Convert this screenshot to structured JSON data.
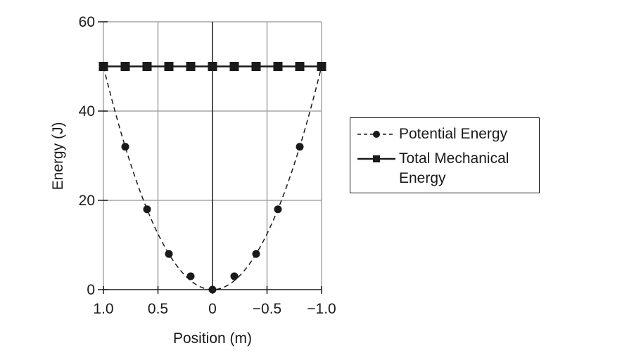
{
  "chart_data": {
    "type": "line",
    "title": "",
    "xlabel": "Position (m)",
    "ylabel": "Energy (J)",
    "xlim": [
      1.0,
      -1.0
    ],
    "ylim": [
      0,
      60
    ],
    "x_ticks": [
      "1.0",
      "0.5",
      "0",
      "−0.5",
      "−1.0"
    ],
    "y_ticks": [
      "0",
      "20",
      "40",
      "60"
    ],
    "grid": true,
    "legend_position": "right",
    "x": [
      1.0,
      0.8,
      0.6,
      0.4,
      0.2,
      0.0,
      -0.2,
      -0.4,
      -0.6,
      -0.8,
      -1.0
    ],
    "series": [
      {
        "name": "Potential Energy",
        "style": "dashed",
        "marker": "circle",
        "values": [
          50,
          32,
          18,
          8,
          3,
          0,
          3,
          8,
          18,
          32,
          50
        ]
      },
      {
        "name": "Total Mechanical Energy",
        "style": "solid",
        "marker": "square",
        "values": [
          50,
          50,
          50,
          50,
          50,
          50,
          50,
          50,
          50,
          50,
          50
        ]
      }
    ]
  },
  "legend": {
    "items": [
      {
        "label": "Potential Energy"
      },
      {
        "label": "Total Mechanical",
        "label_line2": "Energy"
      }
    ]
  },
  "colors": {
    "line": "#1a1a1a",
    "grid": "#a6a6a6"
  }
}
